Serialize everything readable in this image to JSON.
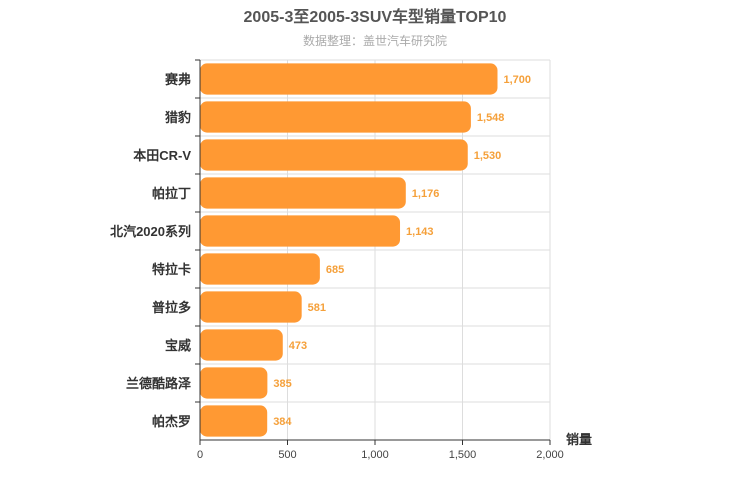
{
  "chart_data": {
    "type": "bar",
    "orientation": "horizontal",
    "title": "2005-3至2005-3SUV车型销量TOP10",
    "subtitle": "数据整理：盖世汽车研究院",
    "xlabel": "销量",
    "ylabel": "",
    "xlim": [
      0,
      2000
    ],
    "xticks": [
      0,
      500,
      1000,
      1500,
      2000
    ],
    "xtick_labels": [
      "0",
      "500",
      "1,000",
      "1,500",
      "2,000"
    ],
    "categories": [
      "赛弗",
      "猎豹",
      "本田CR-V",
      "帕拉丁",
      "北汽2020系列",
      "特拉卡",
      "普拉多",
      "宝威",
      "兰德酷路泽",
      "帕杰罗"
    ],
    "values": [
      1700,
      1548,
      1530,
      1176,
      1143,
      685,
      581,
      473,
      385,
      384
    ],
    "value_labels": [
      "1,700",
      "1,548",
      "1,530",
      "1,176",
      "1,143",
      "685",
      "581",
      "473",
      "385",
      "384"
    ],
    "grid": true,
    "bar_color": "#ff9933",
    "value_label_color": "#f5a03a"
  }
}
